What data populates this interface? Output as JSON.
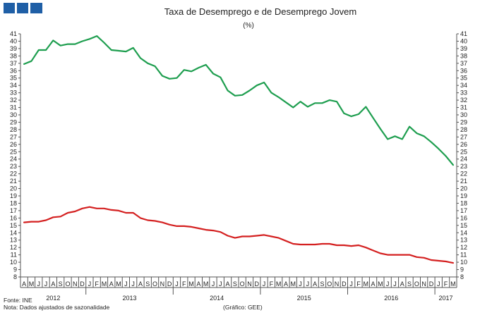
{
  "header": {
    "logo_icon": "gee-logo-icon"
  },
  "chart_data": {
    "type": "line",
    "title": "Taxa de Desemprego e de Desemprego Jovem",
    "subtitle": "(%)",
    "xlabel": "",
    "ylabel": "",
    "ylim": [
      8,
      41
    ],
    "grid": false,
    "months": [
      "A",
      "M",
      "J",
      "J",
      "A",
      "S",
      "O",
      "N",
      "D",
      "J",
      "F",
      "M",
      "A",
      "M",
      "J",
      "J",
      "A",
      "S",
      "O",
      "N",
      "D",
      "J",
      "F",
      "M",
      "A",
      "M",
      "J",
      "J",
      "A",
      "S",
      "O",
      "N",
      "D",
      "J",
      "F",
      "M",
      "A",
      "M",
      "J",
      "J",
      "A",
      "S",
      "O",
      "N",
      "D",
      "J",
      "F",
      "M",
      "A",
      "M",
      "J",
      "J",
      "A",
      "S",
      "O",
      "N",
      "D",
      "J",
      "F",
      "M"
    ],
    "years": [
      {
        "label": "2012",
        "start": 0,
        "count": 9
      },
      {
        "label": "2013",
        "start": 9,
        "count": 12
      },
      {
        "label": "2014",
        "start": 21,
        "count": 12
      },
      {
        "label": "2015",
        "start": 33,
        "count": 12
      },
      {
        "label": "2016",
        "start": 45,
        "count": 12
      },
      {
        "label": "2017",
        "start": 57,
        "count": 3
      }
    ],
    "series": [
      {
        "color": "#1e9e4f",
        "values": [
          36.9,
          37.3,
          38.8,
          38.8,
          40.1,
          39.4,
          39.6,
          39.6,
          40.0,
          40.3,
          40.7,
          39.8,
          38.8,
          38.7,
          38.6,
          39.1,
          37.7,
          37.0,
          36.6,
          35.3,
          34.9,
          35.0,
          36.1,
          35.9,
          36.4,
          36.8,
          35.6,
          35.1,
          33.3,
          32.6,
          32.7,
          33.3,
          34.0,
          34.4,
          33.0,
          32.4,
          31.7,
          31.0,
          31.8,
          31.1,
          31.6,
          31.6,
          32.0,
          31.8,
          30.2,
          29.8,
          30.1,
          31.1,
          29.6,
          28.1,
          26.7,
          27.1,
          26.7,
          28.4,
          27.5,
          27.1,
          26.3,
          25.4,
          24.4,
          23.2
        ]
      },
      {
        "color": "#d42020",
        "values": [
          15.4,
          15.5,
          15.5,
          15.7,
          16.1,
          16.2,
          16.7,
          16.9,
          17.3,
          17.5,
          17.3,
          17.3,
          17.1,
          17.0,
          16.7,
          16.7,
          16.0,
          15.7,
          15.6,
          15.4,
          15.1,
          14.9,
          14.9,
          14.8,
          14.6,
          14.4,
          14.3,
          14.1,
          13.6,
          13.3,
          13.5,
          13.5,
          13.6,
          13.7,
          13.5,
          13.3,
          12.9,
          12.5,
          12.4,
          12.4,
          12.4,
          12.5,
          12.5,
          12.3,
          12.3,
          12.2,
          12.3,
          12.0,
          11.6,
          11.2,
          11.0,
          11.0,
          11.0,
          11.0,
          10.7,
          10.6,
          10.3,
          10.2,
          10.1,
          9.9
        ]
      }
    ]
  },
  "footer": {
    "source": "Fonte: INE",
    "note": "Nota: Dados ajustados de sazonalidade",
    "credit": "(Gráfico: GEE)"
  }
}
